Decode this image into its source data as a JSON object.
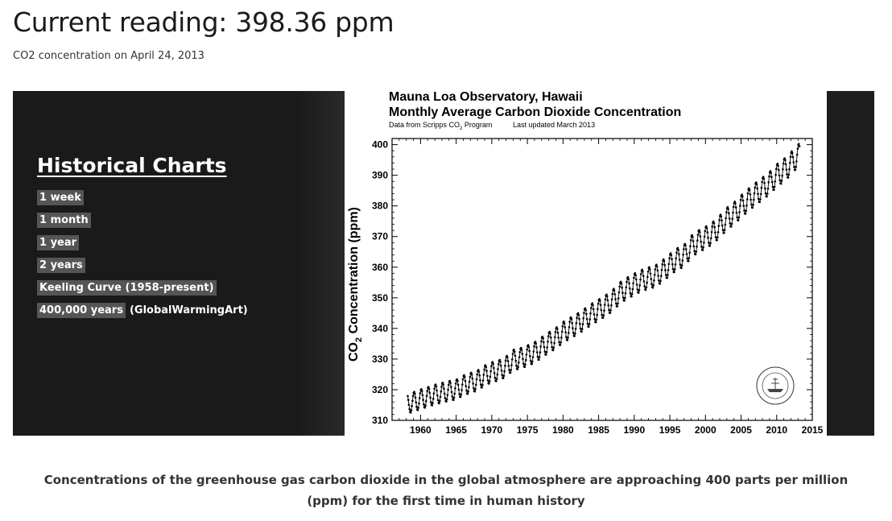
{
  "header": {
    "title": "Current reading: 398.36 ppm",
    "subtitle": "CO2 concentration on April 24, 2013"
  },
  "historical": {
    "title": "Historical Charts",
    "links": [
      {
        "label": "1 week"
      },
      {
        "label": "1 month"
      },
      {
        "label": "1 year"
      },
      {
        "label": "2 years"
      },
      {
        "label": "Keeling Curve (1958-present)"
      },
      {
        "label": "400,000 years",
        "note": "(GlobalWarmingArt)"
      }
    ]
  },
  "chart_data": {
    "type": "line",
    "title": "Mauna Loa Observatory, Hawaii",
    "subtitle": "Monthly Average Carbon Dioxide Concentration",
    "source_left": "Data from Scripps CO",
    "source_sub": "2",
    "source_program": " Program",
    "source_right": "Last updated March 2013",
    "ylabel_main": "CO",
    "ylabel_sub": "2",
    "ylabel_rest": " Concentration (ppm)",
    "xlim": [
      1956,
      2015
    ],
    "ylim": [
      310,
      402
    ],
    "xticks": [
      "1960",
      "1965",
      "1970",
      "1975",
      "1980",
      "1985",
      "1990",
      "1995",
      "2000",
      "2005",
      "2010",
      "2015"
    ],
    "yticks": [
      "310",
      "320",
      "330",
      "340",
      "350",
      "360",
      "370",
      "380",
      "390",
      "400"
    ],
    "series": [
      {
        "x": [
          1958,
          1959,
          1960,
          1961,
          1962,
          1963,
          1964,
          1965,
          1966,
          1967,
          1968,
          1969,
          1970,
          1971,
          1972,
          1973,
          1974,
          1975,
          1976,
          1977,
          1978,
          1979,
          1980,
          1981,
          1982,
          1983,
          1984,
          1985,
          1986,
          1987,
          1988,
          1989,
          1990,
          1991,
          1992,
          1993,
          1994,
          1995,
          1996,
          1997,
          1998,
          1999,
          2000,
          2001,
          2002,
          2003,
          2004,
          2005,
          2006,
          2007,
          2008,
          2009,
          2010,
          2011,
          2012,
          2013
        ],
        "values": [
          315.3,
          316.0,
          316.9,
          317.6,
          318.4,
          319.0,
          319.6,
          320.0,
          321.4,
          322.2,
          323.0,
          324.6,
          325.7,
          326.3,
          327.5,
          329.7,
          330.2,
          331.1,
          332.1,
          333.8,
          335.4,
          336.8,
          338.7,
          340.1,
          341.4,
          343.0,
          344.6,
          346.0,
          347.4,
          349.2,
          351.6,
          353.1,
          354.4,
          355.6,
          356.4,
          357.1,
          358.8,
          360.8,
          362.6,
          363.7,
          366.7,
          368.4,
          369.6,
          371.1,
          373.2,
          375.8,
          377.5,
          379.8,
          381.9,
          383.8,
          385.6,
          387.4,
          389.9,
          391.6,
          393.8,
          396.5
        ]
      }
    ]
  },
  "caption": "Concentrations of the greenhouse gas carbon dioxide in the global atmosphere are approaching 400 parts per million (ppm) for the first time in human history"
}
